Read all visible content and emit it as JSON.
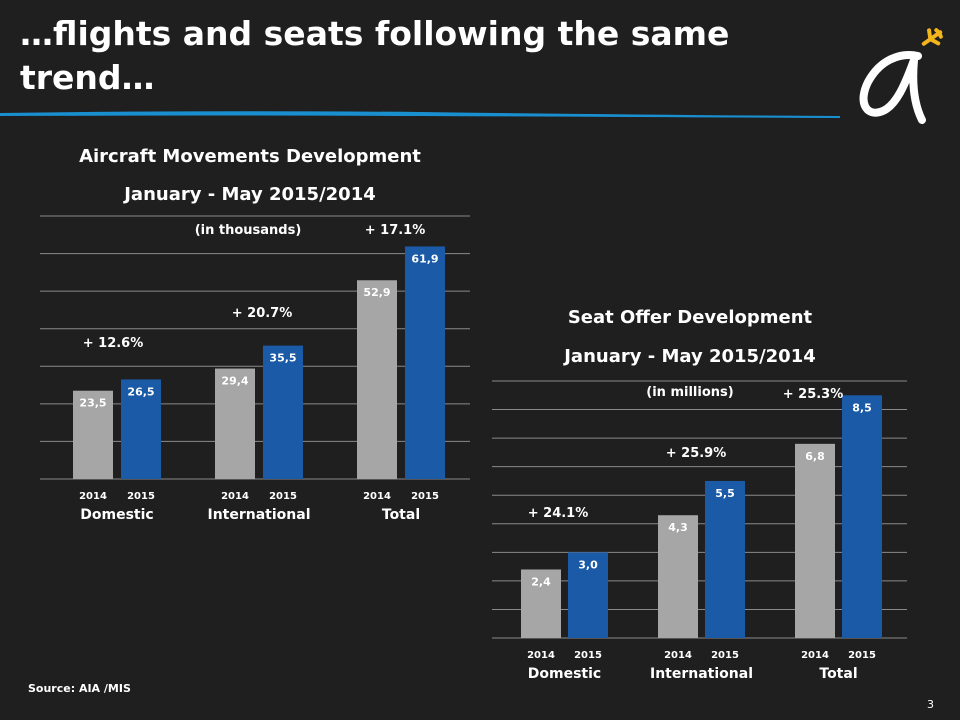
{
  "slide": {
    "title": "…flights and seats following the same trend…",
    "source": "Source:  AIA /MIS",
    "page_number": "3"
  },
  "colors": {
    "background": "#1f1f1f",
    "bar_2014": "#a6a6a6",
    "bar_2015": "#1a5aa6",
    "rule": "#1a8fd0",
    "gridline": "#8a8a8a"
  },
  "chart_data": [
    {
      "type": "bar",
      "title": "Aircraft Movements Development",
      "subtitle": "January - May 2015/2014",
      "unit_note": "(in thousands)",
      "categories": [
        "Domestic",
        "International",
        "Total"
      ],
      "series_years": [
        "2014",
        "2015"
      ],
      "series": [
        {
          "name": "2014",
          "values": [
            23.5,
            29.4,
            52.9
          ],
          "labels": [
            "23,5",
            "29,4",
            "52,9"
          ]
        },
        {
          "name": "2015",
          "values": [
            26.5,
            35.5,
            61.9
          ],
          "labels": [
            "26,5",
            "35,5",
            "61,9"
          ]
        }
      ],
      "growth": [
        "+ 12.6%",
        "+ 20.7%",
        "+ 17.1%"
      ],
      "ylim": [
        0,
        70
      ],
      "grid": true,
      "grid_step": 10
    },
    {
      "type": "bar",
      "title": "Seat Offer Development",
      "subtitle": "January - May 2015/2014",
      "unit_note": "(in millions)",
      "categories": [
        "Domestic",
        "International",
        "Total"
      ],
      "series_years": [
        "2014",
        "2015"
      ],
      "series": [
        {
          "name": "2014",
          "values": [
            2.4,
            4.3,
            6.8
          ],
          "labels": [
            "2,4",
            "4,3",
            "6,8"
          ]
        },
        {
          "name": "2015",
          "values": [
            3.0,
            5.5,
            8.5
          ],
          "labels": [
            "3,0",
            "5,5",
            "8,5"
          ]
        }
      ],
      "growth": [
        "+ 24.1%",
        "+ 25.9%",
        "+ 25.3%"
      ],
      "ylim": [
        0,
        9
      ],
      "grid": true,
      "grid_step": 1
    }
  ]
}
